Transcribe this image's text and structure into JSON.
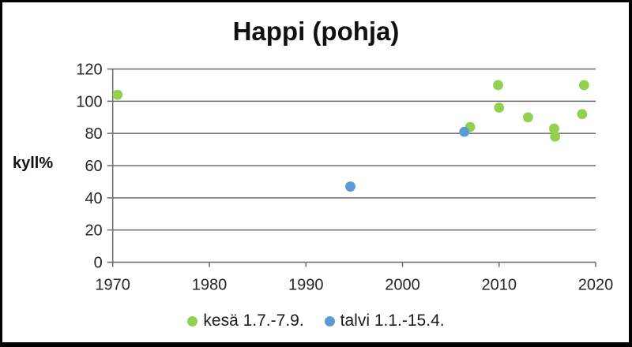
{
  "chart_data": {
    "type": "scatter",
    "title": "Happi (pohja)",
    "ylabel": "kyll%",
    "xlabel": "",
    "xlim": [
      1970,
      2020
    ],
    "ylim": [
      0,
      120
    ],
    "x_ticks": [
      1970,
      1980,
      1990,
      2000,
      2010,
      2020
    ],
    "y_ticks": [
      0,
      20,
      40,
      60,
      80,
      100,
      120
    ],
    "grid": true,
    "legend_position": "bottom",
    "colors": {
      "summer": "#92d050",
      "winter": "#5b9bd5",
      "axis": "#6b6b6b",
      "text": "#262626"
    },
    "series": [
      {
        "name": "kesä 1.7.-7.9.",
        "color": "#92d050",
        "points": [
          {
            "x": 1970.5,
            "y": 104
          },
          {
            "x": 2007.0,
            "y": 84
          },
          {
            "x": 2009.9,
            "y": 110
          },
          {
            "x": 2010.0,
            "y": 96
          },
          {
            "x": 2013.0,
            "y": 90
          },
          {
            "x": 2015.7,
            "y": 83
          },
          {
            "x": 2015.8,
            "y": 78
          },
          {
            "x": 2018.6,
            "y": 92
          },
          {
            "x": 2018.8,
            "y": 110
          }
        ]
      },
      {
        "name": "talvi 1.1.-15.4.",
        "color": "#5b9bd5",
        "points": [
          {
            "x": 1994.6,
            "y": 47
          },
          {
            "x": 2006.4,
            "y": 81
          }
        ]
      }
    ]
  }
}
